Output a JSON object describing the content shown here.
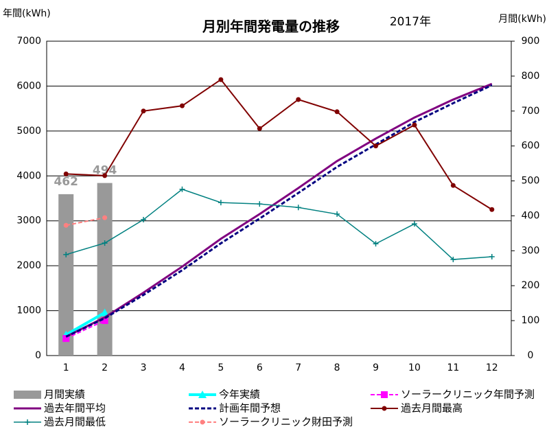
{
  "chart_data": {
    "type": "line",
    "title": "月別年間発電量の推移",
    "subtitle": "2017年",
    "y_label": "年間(kWh)",
    "y2_label": "月間(kWh)",
    "categories": [
      "1",
      "2",
      "3",
      "4",
      "5",
      "6",
      "7",
      "8",
      "9",
      "10",
      "11",
      "12"
    ],
    "ylim": [
      0,
      7000
    ],
    "yticks": [
      0,
      1000,
      2000,
      3000,
      4000,
      5000,
      6000,
      7000
    ],
    "y2lim": [
      0,
      900
    ],
    "y2ticks": [
      0,
      100,
      200,
      300,
      400,
      500,
      600,
      700,
      800,
      900
    ],
    "grid": true,
    "legend": "bottom",
    "series": [
      {
        "name": "月間実績",
        "type": "bar",
        "axis": "y2",
        "color": "#999999",
        "data_labels": true,
        "values": [
          462,
          494,
          null,
          null,
          null,
          null,
          null,
          null,
          null,
          null,
          null,
          null
        ]
      },
      {
        "name": "今年実績",
        "color": "#00ffff",
        "style": "solid",
        "marker": "triangle",
        "width": 4,
        "values": [
          462,
          956,
          null,
          null,
          null,
          null,
          null,
          null,
          null,
          null,
          null,
          null
        ]
      },
      {
        "name": "ソーラークリニック年間予測",
        "color": "#ff00ff",
        "style": "dashed",
        "marker": "square",
        "width": 2,
        "values": [
          380,
          780,
          null,
          null,
          null,
          null,
          null,
          null,
          null,
          null,
          null,
          null
        ]
      },
      {
        "name": "過去年間平均",
        "color": "#800080",
        "style": "solid",
        "marker": "none",
        "width": 3,
        "values": [
          420,
          850,
          1400,
          1980,
          2600,
          3150,
          3730,
          4330,
          4830,
          5300,
          5700,
          6050
        ]
      },
      {
        "name": "計画年間予想",
        "color": "#000080",
        "style": "dashed",
        "marker": "none",
        "width": 3,
        "values": [
          420,
          830,
          1350,
          1900,
          2500,
          3050,
          3620,
          4200,
          4700,
          5200,
          5620,
          6020
        ]
      },
      {
        "name": "過去月間最高",
        "axis": "y2",
        "color": "#800000",
        "style": "solid",
        "marker": "circle",
        "width": 2,
        "values": [
          520,
          515,
          700,
          715,
          790,
          650,
          733,
          698,
          600,
          660,
          487,
          418
        ]
      },
      {
        "name": "過去月間最低",
        "axis": "y2",
        "color": "#008080",
        "style": "solid",
        "marker": "plus",
        "width": 1.5,
        "values": [
          289,
          322,
          389,
          476,
          438,
          434,
          424,
          405,
          320,
          377,
          275,
          283
        ]
      },
      {
        "name": "ソーラークリニック財田予測",
        "color": "#ff8080",
        "style": "dashed",
        "marker": "circle",
        "width": 2,
        "values": [
          2900,
          3070,
          null,
          null,
          null,
          null,
          null,
          null,
          null,
          null,
          null,
          null
        ]
      }
    ]
  }
}
